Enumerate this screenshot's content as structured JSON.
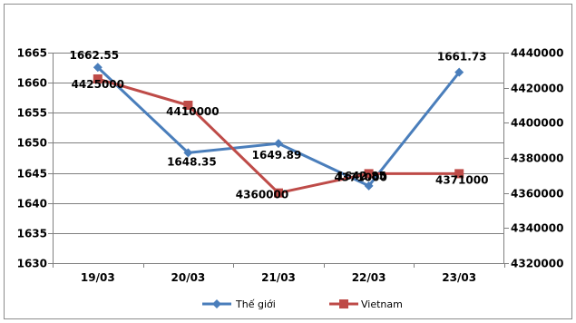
{
  "chart_data": {
    "type": "line",
    "categories": [
      "19/03",
      "20/03",
      "21/03",
      "22/03",
      "23/03"
    ],
    "left_axis": {
      "ylim": [
        1630,
        1665
      ],
      "ticks": [
        "1630",
        "1635",
        "1640",
        "1645",
        "1650",
        "1655",
        "1660",
        "1665"
      ]
    },
    "right_axis": {
      "ylim": [
        4320000,
        4440000
      ],
      "ticks": [
        "4320000",
        "4340000",
        "4360000",
        "4380000",
        "4400000",
        "4420000",
        "4440000"
      ]
    },
    "grid": true,
    "legend_position": "bottom",
    "series": [
      {
        "name": "Thế giới",
        "axis": "left",
        "color": "#4a7ebb",
        "marker": "diamond",
        "values": [
          1662.55,
          1648.35,
          1649.89,
          1642.85,
          1661.73
        ],
        "labels": [
          "1662.55",
          "1648.35",
          "1649.89",
          "1642.85",
          "1661.73"
        ]
      },
      {
        "name": "Vietnam",
        "axis": "right",
        "color": "#be4b48",
        "marker": "square",
        "values": [
          4425000,
          4410000,
          4360000,
          4371000,
          4371000
        ],
        "labels": [
          "4425000",
          "4410000",
          "4360000",
          "4371000",
          "4371000"
        ]
      }
    ]
  }
}
